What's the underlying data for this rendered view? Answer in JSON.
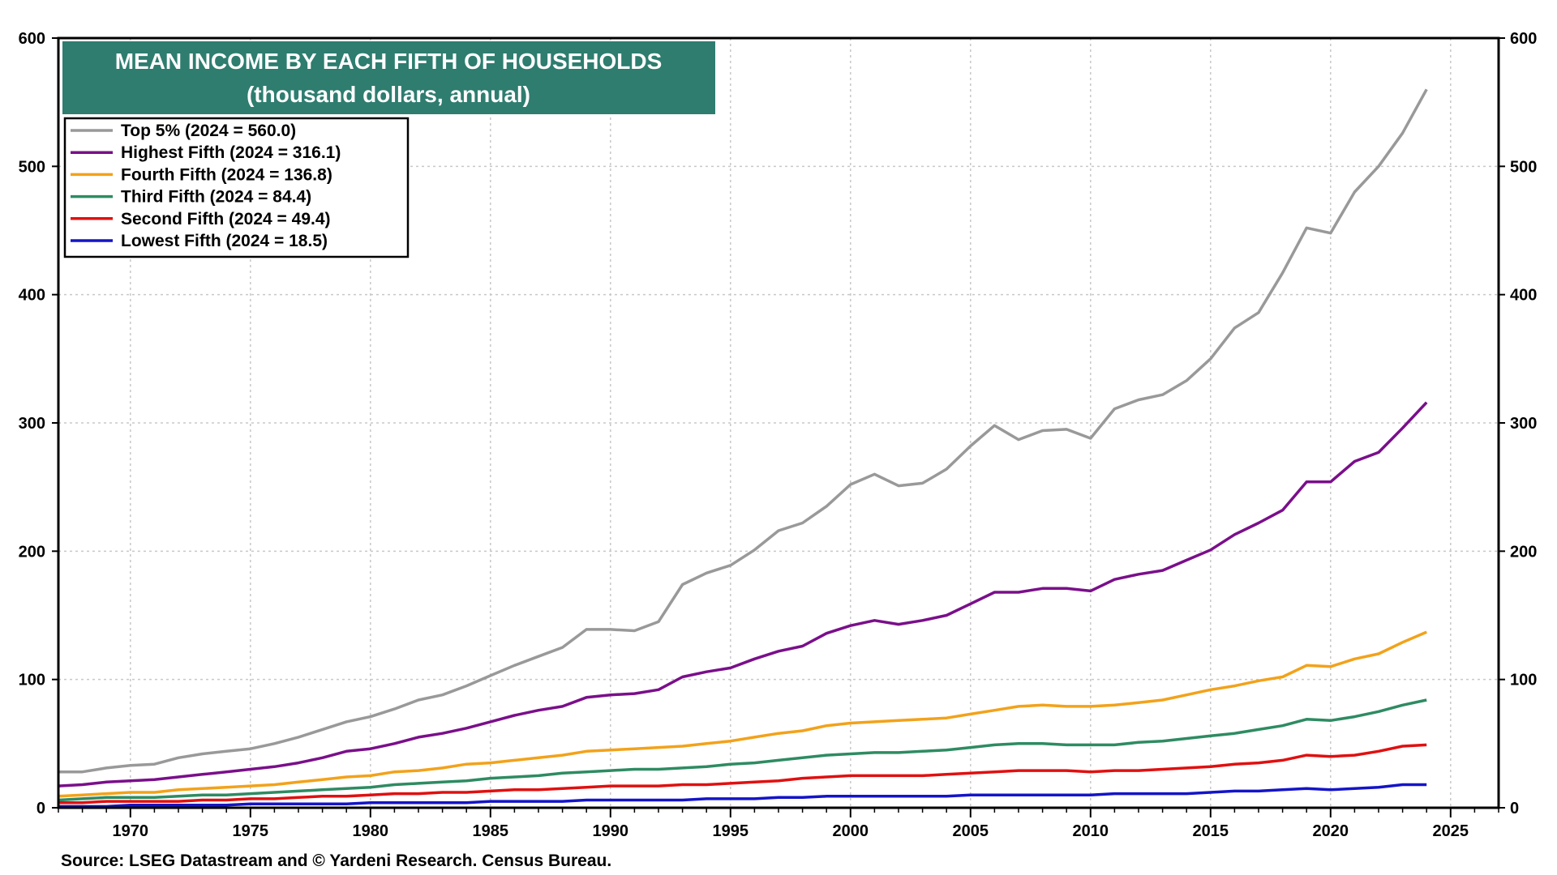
{
  "chart_data": {
    "type": "line",
    "title": "MEAN INCOME BY EACH FIFTH OF HOUSEHOLDS",
    "subtitle": "(thousand dollars, annual)",
    "source": "Source: LSEG Datastream and © Yardeni Research. Census Bureau.",
    "xlim": [
      1967,
      2027
    ],
    "ylim": [
      0,
      600
    ],
    "x_ticks": [
      "1970",
      "1975",
      "1980",
      "1985",
      "1990",
      "1995",
      "2000",
      "2005",
      "2010",
      "2015",
      "2020",
      "2025"
    ],
    "y_ticks": [
      "0",
      "100",
      "200",
      "300",
      "400",
      "500",
      "600"
    ],
    "grid": true,
    "legend_position": "top-left",
    "colors": {
      "title_bg": "#2e7d6f",
      "top5": "#999999",
      "highest": "#7a0f8a",
      "fourth": "#f2a21a",
      "third": "#2e8b62",
      "second": "#e01010",
      "lowest": "#1414c8"
    },
    "x": [
      1967,
      1968,
      1969,
      1970,
      1971,
      1972,
      1973,
      1974,
      1975,
      1976,
      1977,
      1978,
      1979,
      1980,
      1981,
      1982,
      1983,
      1984,
      1985,
      1986,
      1987,
      1988,
      1989,
      1990,
      1991,
      1992,
      1993,
      1994,
      1995,
      1996,
      1997,
      1998,
      1999,
      2000,
      2001,
      2002,
      2003,
      2004,
      2005,
      2006,
      2007,
      2008,
      2009,
      2010,
      2011,
      2012,
      2013,
      2014,
      2015,
      2016,
      2017,
      2018,
      2019,
      2020,
      2021,
      2022,
      2023,
      2024
    ],
    "series": [
      {
        "name": "Top 5% (2024 = 560.0)",
        "color_key": "top5",
        "values": [
          28,
          28,
          31,
          33,
          34,
          39,
          42,
          44,
          46,
          50,
          55,
          61,
          67,
          71,
          77,
          84,
          88,
          95,
          103,
          111,
          118,
          125,
          139,
          139,
          138,
          145,
          174,
          183,
          189,
          201,
          216,
          222,
          235,
          252,
          260,
          251,
          253,
          264,
          282,
          298,
          287,
          294,
          295,
          288,
          311,
          318,
          322,
          333,
          350,
          374,
          386,
          417,
          452,
          448,
          480,
          500,
          526,
          560
        ]
      },
      {
        "name": "Highest Fifth (2024 = 316.1)",
        "color_key": "highest",
        "values": [
          17,
          18,
          20,
          21,
          22,
          24,
          26,
          28,
          30,
          32,
          35,
          39,
          44,
          46,
          50,
          55,
          58,
          62,
          67,
          72,
          76,
          79,
          86,
          88,
          89,
          92,
          102,
          106,
          109,
          116,
          122,
          126,
          136,
          142,
          146,
          143,
          146,
          150,
          159,
          168,
          168,
          171,
          171,
          169,
          178,
          182,
          185,
          193,
          201,
          213,
          222,
          232,
          254,
          254,
          270,
          277,
          296,
          316
        ]
      },
      {
        "name": "Fourth Fifth (2024 = 136.8)",
        "color_key": "fourth",
        "values": [
          9,
          10,
          11,
          12,
          12,
          14,
          15,
          16,
          17,
          18,
          20,
          22,
          24,
          25,
          28,
          29,
          31,
          34,
          35,
          37,
          39,
          41,
          44,
          45,
          46,
          47,
          48,
          50,
          52,
          55,
          58,
          60,
          64,
          66,
          67,
          68,
          69,
          70,
          73,
          76,
          79,
          80,
          79,
          79,
          80,
          82,
          84,
          88,
          92,
          95,
          99,
          102,
          111,
          110,
          116,
          120,
          129,
          137
        ]
      },
      {
        "name": "Third Fifth (2024 = 84.4)",
        "color_key": "third",
        "values": [
          6,
          7,
          8,
          8,
          8,
          9,
          10,
          10,
          11,
          12,
          13,
          14,
          15,
          16,
          18,
          19,
          20,
          21,
          23,
          24,
          25,
          27,
          28,
          29,
          30,
          30,
          31,
          32,
          34,
          35,
          37,
          39,
          41,
          42,
          43,
          43,
          44,
          45,
          47,
          49,
          50,
          50,
          49,
          49,
          49,
          51,
          52,
          54,
          56,
          58,
          61,
          64,
          69,
          68,
          71,
          75,
          80,
          84
        ]
      },
      {
        "name": "Second Fifth (2024 = 49.4)",
        "color_key": "second",
        "values": [
          4,
          4,
          5,
          5,
          5,
          5,
          6,
          6,
          7,
          7,
          8,
          9,
          9,
          10,
          11,
          11,
          12,
          12,
          13,
          14,
          14,
          15,
          16,
          17,
          17,
          17,
          18,
          18,
          19,
          20,
          21,
          23,
          24,
          25,
          25,
          25,
          25,
          26,
          27,
          28,
          29,
          29,
          29,
          28,
          29,
          29,
          30,
          31,
          32,
          34,
          35,
          37,
          41,
          40,
          41,
          44,
          48,
          49
        ]
      },
      {
        "name": "Lowest Fifth (2024 = 18.5)",
        "color_key": "lowest",
        "values": [
          1,
          1,
          1,
          2,
          2,
          2,
          2,
          2,
          3,
          3,
          3,
          3,
          3,
          4,
          4,
          4,
          4,
          4,
          5,
          5,
          5,
          5,
          6,
          6,
          6,
          6,
          6,
          7,
          7,
          7,
          8,
          8,
          9,
          9,
          9,
          9,
          9,
          9,
          10,
          10,
          10,
          10,
          10,
          10,
          11,
          11,
          11,
          11,
          12,
          13,
          13,
          14,
          15,
          14,
          15,
          16,
          18,
          18
        ]
      }
    ]
  }
}
